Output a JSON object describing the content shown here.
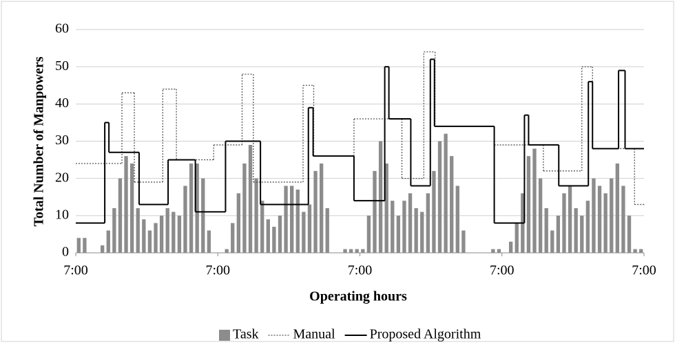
{
  "chart_data": {
    "type": "bar_step",
    "xlabel": "Operating hours",
    "ylabel": "Total Number of Manpowers",
    "xlim": [
      0,
      96
    ],
    "ylim": [
      0,
      60
    ],
    "xticks": [
      {
        "value": 0,
        "label": "7:00"
      },
      {
        "value": 24,
        "label": "7:00"
      },
      {
        "value": 48,
        "label": "7:00"
      },
      {
        "value": 72,
        "label": "7:00"
      },
      {
        "value": 96,
        "label": "7:00"
      }
    ],
    "yticks": [
      0,
      10,
      20,
      30,
      40,
      50,
      60
    ],
    "grid": true,
    "legend": "bottom",
    "series": [
      {
        "name": "Task",
        "kind": "bar",
        "color": "#8c8c8c",
        "x": [
          0,
          1,
          2,
          3,
          4,
          5,
          6,
          7,
          8,
          9,
          10,
          11,
          12,
          13,
          14,
          15,
          16,
          17,
          18,
          19,
          20,
          21,
          22,
          23,
          24,
          25,
          26,
          27,
          28,
          29,
          30,
          31,
          32,
          33,
          34,
          35,
          36,
          37,
          38,
          39,
          40,
          41,
          42,
          43,
          44,
          45,
          46,
          47,
          48,
          49,
          50,
          51,
          52,
          53,
          54,
          55,
          56,
          57,
          58,
          59,
          60,
          61,
          62,
          63,
          64,
          65,
          66,
          67,
          68,
          69,
          70,
          71,
          72,
          73,
          74,
          75,
          76,
          77,
          78,
          79,
          80,
          81,
          82,
          83,
          84,
          85,
          86,
          87,
          88,
          89,
          90,
          91,
          92,
          93,
          94,
          95
        ],
        "values": [
          4,
          4,
          0,
          0,
          2,
          6,
          12,
          20,
          26,
          24,
          12,
          9,
          6,
          8,
          10,
          12,
          11,
          10,
          18,
          24,
          24,
          20,
          6,
          0,
          0,
          1,
          8,
          16,
          24,
          29,
          20,
          14,
          9,
          7,
          10,
          18,
          18,
          17,
          11,
          13,
          22,
          24,
          12,
          0,
          0,
          1,
          1,
          1,
          1,
          10,
          22,
          30,
          24,
          14,
          10,
          14,
          16,
          12,
          11,
          16,
          22,
          30,
          32,
          26,
          18,
          6,
          0,
          0,
          0,
          0,
          1,
          1,
          0,
          3,
          8,
          16,
          26,
          28,
          20,
          12,
          6,
          10,
          16,
          18,
          12,
          10,
          14,
          20,
          18,
          16,
          20,
          24,
          18,
          10,
          1,
          1
        ]
      },
      {
        "name": "Manual",
        "kind": "step",
        "color": "#555555",
        "dash": true,
        "x": [
          0,
          7.8,
          9.9,
          14.7,
          17,
          23.3,
          28.1,
          30,
          38.4,
          40.2,
          47,
          55.1,
          58.8,
          60.7,
          70.7,
          79,
          85.5,
          87.3,
          94.4,
          96
        ],
        "values": [
          24,
          43,
          19,
          44,
          25,
          29,
          48,
          19,
          45,
          26,
          36,
          20,
          54,
          34,
          29,
          22,
          50,
          28,
          13,
          13
        ]
      },
      {
        "name": "Proposed Algorithm",
        "kind": "step",
        "color": "#000000",
        "dash": false,
        "x": [
          0,
          4.9,
          5.6,
          10.7,
          15.6,
          20.2,
          25.3,
          31.2,
          39.3,
          40.1,
          47,
          52.2,
          52.9,
          56.6,
          59.9,
          60.6,
          70.7,
          75.8,
          76.5,
          81.6,
          86.6,
          87.3,
          91.7,
          92.8,
          96
        ],
        "values": [
          8,
          35,
          27,
          13,
          25,
          11,
          30,
          13,
          39,
          26,
          14,
          50,
          36,
          18,
          52,
          34,
          8,
          37,
          29,
          18,
          46,
          28,
          49,
          28,
          28
        ]
      }
    ]
  }
}
